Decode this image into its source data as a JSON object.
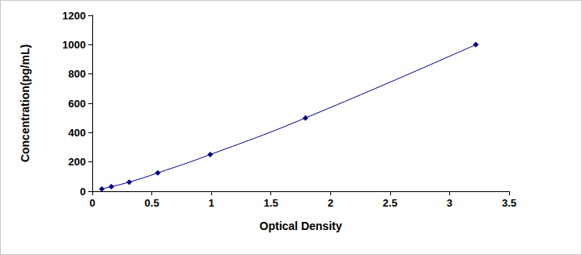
{
  "chart_data": {
    "type": "line",
    "x_label": "Optical Density",
    "y_label": "Concentration(pg/mL)",
    "x": [
      0.08,
      0.16,
      0.31,
      0.55,
      0.99,
      1.79,
      3.22
    ],
    "values": [
      15.6,
      31.2,
      62.5,
      125,
      250,
      500,
      1000
    ],
    "color": "#00008b",
    "marker": "diamond",
    "line_style": "solid",
    "xlim": [
      0,
      3.5
    ],
    "xticks": [
      0,
      0.5,
      1,
      1.5,
      2,
      2.5,
      3,
      3.5
    ],
    "ylim": [
      0,
      1200
    ],
    "yticks": [
      0,
      200,
      400,
      600,
      800,
      1000,
      1200
    ],
    "grid": false
  }
}
